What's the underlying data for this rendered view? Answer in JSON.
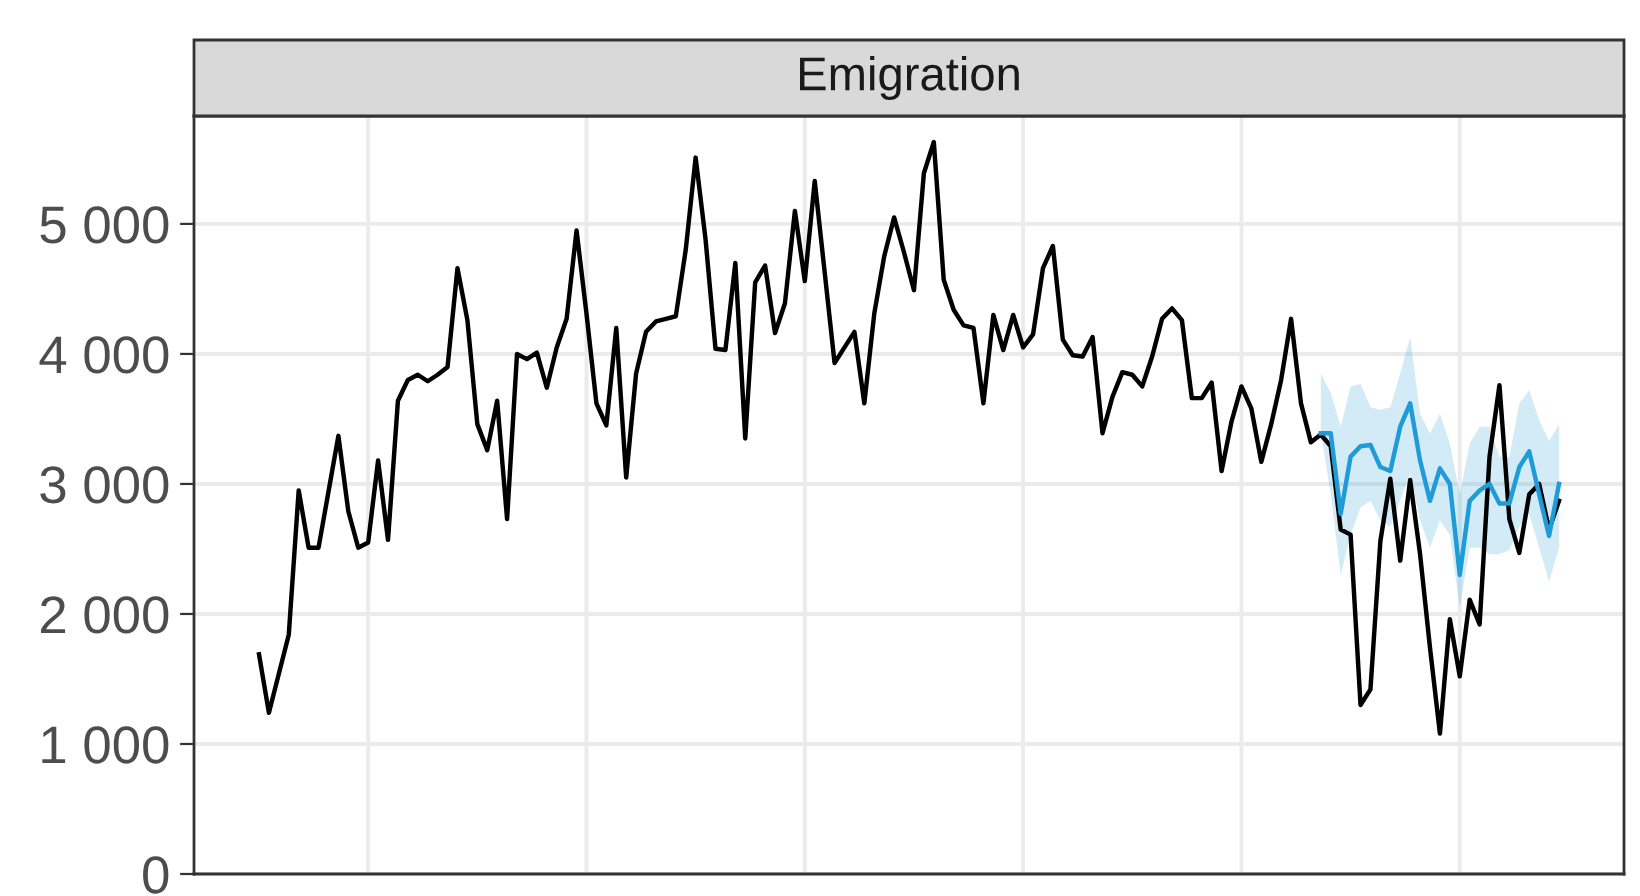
{
  "chart_data": {
    "type": "line",
    "title": "Emigration",
    "categories": [
      null,
      null,
      null,
      null,
      null,
      null,
      null,
      null,
      null,
      null,
      null,
      null,
      null,
      null,
      null,
      null,
      null,
      null,
      null,
      null,
      null,
      null,
      null,
      null,
      null,
      null,
      null,
      null,
      null,
      null,
      null,
      null,
      null,
      null,
      null,
      null,
      null,
      null,
      null,
      null,
      null,
      null,
      null,
      null,
      null,
      null,
      null,
      null,
      null,
      null,
      null,
      null,
      null,
      null,
      null,
      null,
      null,
      null,
      null,
      null,
      null,
      null,
      null,
      null,
      null,
      null,
      null,
      null,
      null,
      null,
      null,
      null,
      null,
      null,
      null,
      null,
      null,
      null,
      null,
      null,
      null,
      null,
      null,
      null,
      null,
      null,
      null,
      null,
      null,
      null,
      null,
      null,
      null,
      null,
      null,
      null,
      null,
      null,
      null,
      null,
      null,
      null,
      null,
      null,
      null,
      null,
      null,
      null,
      null,
      null,
      null,
      null,
      null,
      null,
      null,
      null,
      null,
      null,
      null,
      null,
      null,
      null,
      null,
      null,
      null,
      null,
      null,
      null,
      null,
      null,
      null,
      null
    ],
    "series": [
      {
        "color": "#000000",
        "values": [
          1690,
          1240,
          1540,
          1840,
          2950,
          2510,
          2510,
          2940,
          3370,
          2790,
          2510,
          2550,
          3180,
          2570,
          3640,
          3800,
          3840,
          3790,
          3840,
          3900,
          4660,
          4260,
          3460,
          3260,
          3640,
          2730,
          4000,
          3960,
          4010,
          3740,
          4050,
          4270,
          4950,
          4310,
          3620,
          3450,
          4200,
          3050,
          3850,
          4170,
          4250,
          4270,
          4290,
          4800,
          5510,
          4880,
          4040,
          4030,
          4700,
          3350,
          4550,
          4680,
          4160,
          4390,
          5100,
          4560,
          5330,
          4630,
          3930,
          4050,
          4170,
          3620,
          4310,
          4750,
          5050,
          4780,
          4490,
          5390,
          5630,
          4570,
          4340,
          4220,
          4200,
          3620,
          4300,
          4030,
          4300,
          4050,
          4150,
          4660,
          4830,
          4110,
          3990,
          3980,
          4130,
          3390,
          3670,
          3860,
          3840,
          3750,
          3980,
          4270,
          4350,
          4260,
          3660,
          3660,
          3780,
          3100,
          3480,
          3750,
          3580,
          3170,
          3460,
          3800,
          4270,
          3620,
          3320,
          3380,
          3290,
          2650,
          2610,
          1300,
          1420,
          2560,
          3040,
          2410,
          3030,
          2460,
          1740,
          1080,
          1960,
          1520,
          2110,
          1920,
          3210,
          3760,
          2730,
          2470,
          2920,
          3000,
          2650,
          2870
        ]
      },
      {
        "color": "#1f9bd7",
        "values": [
          null,
          null,
          null,
          null,
          null,
          null,
          null,
          null,
          null,
          null,
          null,
          null,
          null,
          null,
          null,
          null,
          null,
          null,
          null,
          null,
          null,
          null,
          null,
          null,
          null,
          null,
          null,
          null,
          null,
          null,
          null,
          null,
          null,
          null,
          null,
          null,
          null,
          null,
          null,
          null,
          null,
          null,
          null,
          null,
          null,
          null,
          null,
          null,
          null,
          null,
          null,
          null,
          null,
          null,
          null,
          null,
          null,
          null,
          null,
          null,
          null,
          null,
          null,
          null,
          null,
          null,
          null,
          null,
          null,
          null,
          null,
          null,
          null,
          null,
          null,
          null,
          null,
          null,
          null,
          null,
          null,
          null,
          null,
          null,
          null,
          null,
          null,
          null,
          null,
          null,
          null,
          null,
          null,
          null,
          null,
          null,
          null,
          null,
          null,
          null,
          null,
          null,
          null,
          null,
          null,
          null,
          null,
          3390,
          3390,
          2770,
          3210,
          3290,
          3300,
          3130,
          3100,
          3440,
          3620,
          3180,
          2870,
          3120,
          3000,
          2300,
          2870,
          2950,
          3000,
          2850,
          2850,
          3130,
          3250,
          2920,
          2600,
          3000
        ],
        "upper": [
          null,
          null,
          null,
          null,
          null,
          null,
          null,
          null,
          null,
          null,
          null,
          null,
          null,
          null,
          null,
          null,
          null,
          null,
          null,
          null,
          null,
          null,
          null,
          null,
          null,
          null,
          null,
          null,
          null,
          null,
          null,
          null,
          null,
          null,
          null,
          null,
          null,
          null,
          null,
          null,
          null,
          null,
          null,
          null,
          null,
          null,
          null,
          null,
          null,
          null,
          null,
          null,
          null,
          null,
          null,
          null,
          null,
          null,
          null,
          null,
          null,
          null,
          null,
          null,
          null,
          null,
          null,
          null,
          null,
          null,
          null,
          null,
          null,
          null,
          null,
          null,
          null,
          null,
          null,
          null,
          null,
          null,
          null,
          null,
          null,
          null,
          null,
          null,
          null,
          null,
          null,
          null,
          null,
          null,
          null,
          null,
          null,
          null,
          null,
          null,
          null,
          null,
          null,
          null,
          null,
          null,
          null,
          3850,
          3700,
          3440,
          3750,
          3770,
          3590,
          3570,
          3590,
          3850,
          4130,
          3540,
          3390,
          3540,
          3310,
          2920,
          3310,
          3440,
          3440,
          3210,
          3210,
          3620,
          3720,
          3490,
          3330,
          3460
        ],
        "lower": [
          null,
          null,
          null,
          null,
          null,
          null,
          null,
          null,
          null,
          null,
          null,
          null,
          null,
          null,
          null,
          null,
          null,
          null,
          null,
          null,
          null,
          null,
          null,
          null,
          null,
          null,
          null,
          null,
          null,
          null,
          null,
          null,
          null,
          null,
          null,
          null,
          null,
          null,
          null,
          null,
          null,
          null,
          null,
          null,
          null,
          null,
          null,
          null,
          null,
          null,
          null,
          null,
          null,
          null,
          null,
          null,
          null,
          null,
          null,
          null,
          null,
          null,
          null,
          null,
          null,
          null,
          null,
          null,
          null,
          null,
          null,
          null,
          null,
          null,
          null,
          null,
          null,
          null,
          null,
          null,
          null,
          null,
          null,
          null,
          null,
          null,
          null,
          null,
          null,
          null,
          null,
          null,
          null,
          null,
          null,
          null,
          null,
          null,
          null,
          null,
          null,
          null,
          null,
          null,
          null,
          null,
          null,
          3390,
          2920,
          2300,
          2610,
          2820,
          2870,
          2720,
          2670,
          2870,
          3080,
          2720,
          2510,
          2720,
          2610,
          2050,
          2510,
          2510,
          2460,
          2460,
          2490,
          2670,
          2770,
          2510,
          2250,
          2510
        ]
      }
    ],
    "ylim": [
      0,
      5830
    ],
    "yticks": [
      0,
      {
        "value": 1000,
        "label": "1 000"
      },
      {
        "value": 2000,
        "label": "2 000"
      },
      {
        "value": 3000,
        "label": "3 000"
      },
      {
        "value": 4000,
        "label": "4 000"
      },
      {
        "value": 5000,
        "label": "5 000"
      }
    ],
    "grid": true,
    "tick_labels": "y"
  }
}
